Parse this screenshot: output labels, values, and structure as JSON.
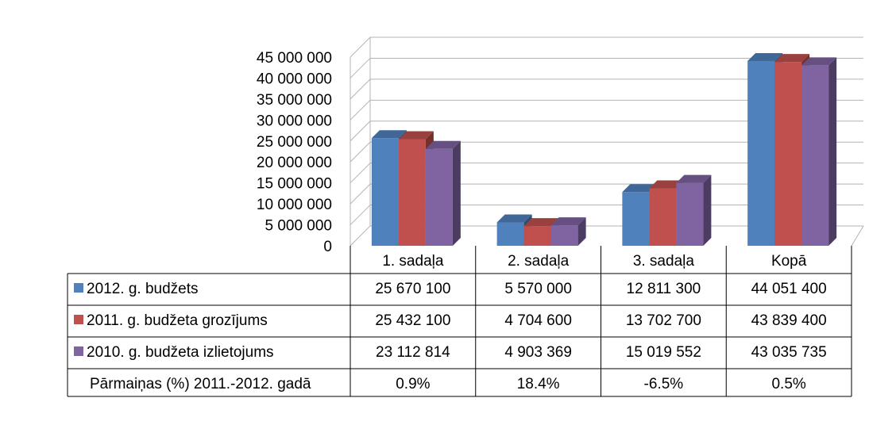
{
  "chart_data": {
    "type": "bar",
    "title": "",
    "xlabel": "",
    "ylabel": "",
    "ylim": [
      0,
      45000000
    ],
    "grid": true,
    "legend_placement": "in data table, left column",
    "categories": [
      "1. sadaļa",
      "2. sadaļa",
      "3. sadaļa",
      "Kopā"
    ],
    "y_ticks": [
      "0",
      "5 000 000",
      "10 000 000",
      "15 000 000",
      "20 000 000",
      "25 000 000",
      "30 000 000",
      "35 000 000",
      "40 000 000",
      "45 000 000"
    ],
    "series": [
      {
        "name": "2012. g. budžets",
        "color": "#4F81BD",
        "values": [
          25670100,
          5570000,
          12811300,
          44051400
        ],
        "labels": [
          "25 670 100",
          "5 570 000",
          "12 811 300",
          "44 051 400"
        ]
      },
      {
        "name": "2011. g. budžeta grozījums",
        "color": "#C0504D",
        "values": [
          25432100,
          4704600,
          13702700,
          43839400
        ],
        "labels": [
          "25 432 100",
          "4 704 600",
          "13 702 700",
          "43 839 400"
        ]
      },
      {
        "name": "2010. g. budžeta izlietojums",
        "color": "#8064A2",
        "values": [
          23112814,
          4903369,
          15019552,
          43035735
        ],
        "labels": [
          "23 112 814",
          "4 903 369",
          "15 019 552",
          "43 035 735"
        ]
      }
    ],
    "extra_row": {
      "name": "Pārmaiņas (%) 2011.-2012. gadā",
      "values": [
        "0.9%",
        "18.4%",
        "-6.5%",
        "0.5%"
      ]
    }
  }
}
